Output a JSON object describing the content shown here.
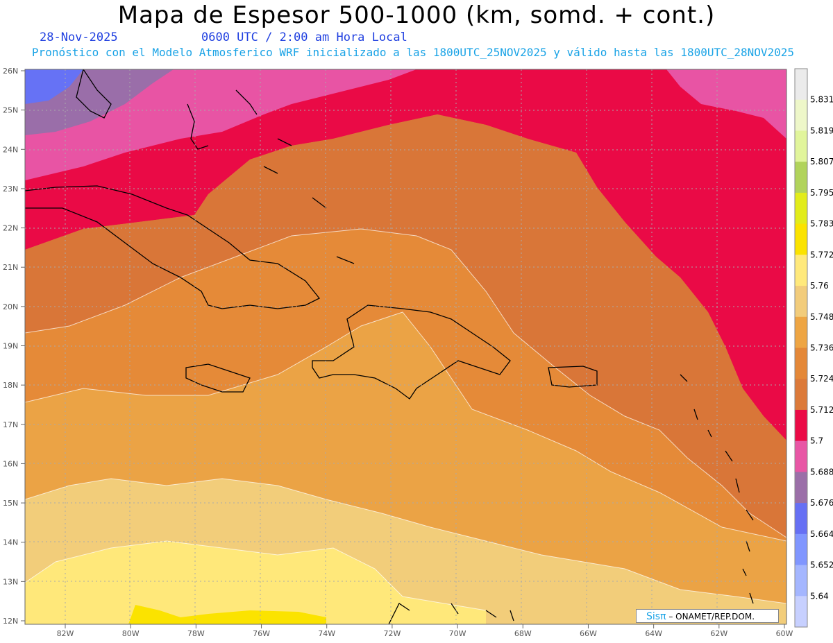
{
  "header": {
    "title": "Mapa de Espesor 500-1000 (km, somd. + cont.)",
    "date": "28-Nov-2025",
    "time": "0600 UTC / 2:00 am Hora Local",
    "subtitle": "Pronóstico con el Modelo Atmosferico WRF inicializado a las 1800UTC_25NOV2025 y válido hasta las  1800UTC_28NOV2025"
  },
  "map": {
    "lat_labels": [
      "26N",
      "25N",
      "24N",
      "23N",
      "22N",
      "21N",
      "20N",
      "19N",
      "18N",
      "17N",
      "16N",
      "15N",
      "14N",
      "13N",
      "12N"
    ],
    "lon_labels": [
      "82W",
      "80W",
      "78W",
      "76W",
      "74W",
      "72W",
      "70W",
      "68W",
      "66W",
      "64W",
      "62W",
      "60W"
    ],
    "lat_range": [
      12,
      26
    ],
    "lon_range": [
      -83.2,
      -60
    ],
    "grid": "dotted",
    "colors": {
      "c5640": "#bfcbff",
      "c5652": "#9db0ff",
      "c5664": "#7e95ff",
      "c5676": "#6672f5",
      "c5688": "#9a6ea9",
      "c5700": "#e854a4",
      "c5712": "#ea0a46",
      "c5724": "#d97638",
      "c5736": "#e58a38",
      "c5748": "#eba345",
      "c5760": "#f2cd7a",
      "c5772": "#ffe87a",
      "c5783": "#fbe300",
      "coast": "#000000"
    }
  },
  "colorbar": {
    "labels": [
      "5.64",
      "5.652",
      "5.664",
      "5.676",
      "5.688",
      "5.7",
      "5.712",
      "5.724",
      "5.736",
      "5.748",
      "5.76",
      "5.772",
      "5.783",
      "5.795",
      "5.807",
      "5.819",
      "5.831"
    ],
    "colors": [
      "#c7d0ff",
      "#a4b6ff",
      "#8096ff",
      "#6670f4",
      "#9b6fa8",
      "#e856a5",
      "#eb0a46",
      "#dc7a3a",
      "#e48838",
      "#eea543",
      "#f2cc7b",
      "#ffe97b",
      "#fbe300",
      "#e2ec1a",
      "#b1d35b",
      "#e1f59b",
      "#eef7c9",
      "#ebebeb"
    ]
  },
  "credit": {
    "logo": "Sisπ",
    "text": "– ONAMET/REP.DOM."
  }
}
